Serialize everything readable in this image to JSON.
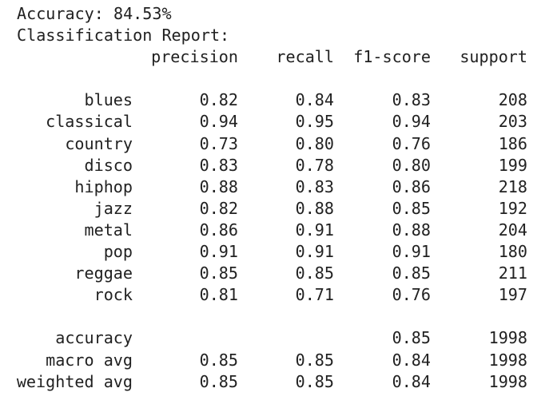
{
  "accuracy_line": "Accuracy: 84.53%",
  "report_title": "Classification Report:",
  "headers": {
    "precision": "precision",
    "recall": "recall",
    "f1": "f1-score",
    "support": "support"
  },
  "classes": [
    {
      "label": "blues",
      "precision": "0.82",
      "recall": "0.84",
      "f1": "0.83",
      "support": "208"
    },
    {
      "label": "classical",
      "precision": "0.94",
      "recall": "0.95",
      "f1": "0.94",
      "support": "203"
    },
    {
      "label": "country",
      "precision": "0.73",
      "recall": "0.80",
      "f1": "0.76",
      "support": "186"
    },
    {
      "label": "disco",
      "precision": "0.83",
      "recall": "0.78",
      "f1": "0.80",
      "support": "199"
    },
    {
      "label": "hiphop",
      "precision": "0.88",
      "recall": "0.83",
      "f1": "0.86",
      "support": "218"
    },
    {
      "label": "jazz",
      "precision": "0.82",
      "recall": "0.88",
      "f1": "0.85",
      "support": "192"
    },
    {
      "label": "metal",
      "precision": "0.86",
      "recall": "0.91",
      "f1": "0.88",
      "support": "204"
    },
    {
      "label": "pop",
      "precision": "0.91",
      "recall": "0.91",
      "f1": "0.91",
      "support": "180"
    },
    {
      "label": "reggae",
      "precision": "0.85",
      "recall": "0.85",
      "f1": "0.85",
      "support": "211"
    },
    {
      "label": "rock",
      "precision": "0.81",
      "recall": "0.71",
      "f1": "0.76",
      "support": "197"
    }
  ],
  "summary": {
    "accuracy": {
      "label": "accuracy",
      "precision": "",
      "recall": "",
      "f1": "0.85",
      "support": "1998"
    },
    "macro_avg": {
      "label": "macro avg",
      "precision": "0.85",
      "recall": "0.85",
      "f1": "0.84",
      "support": "1998"
    },
    "weighted_avg": {
      "label": "weighted avg",
      "precision": "0.85",
      "recall": "0.85",
      "f1": "0.84",
      "support": "1998"
    }
  }
}
